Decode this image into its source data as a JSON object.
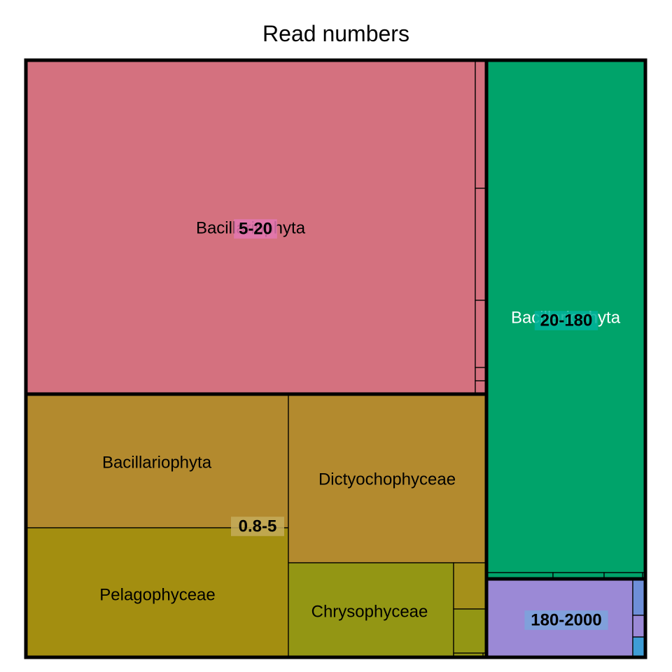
{
  "chart_data": {
    "type": "treemap",
    "title": "Read numbers",
    "groups": [
      {
        "label": "5-20",
        "color": "#D4717F",
        "label_bg": "#E377B2",
        "subgroups": [
          {
            "label": "Bacillariophyta",
            "color": "#D4717F",
            "text_color": "#000000"
          },
          {
            "label": "",
            "color": "#D4717F"
          },
          {
            "label": "",
            "color": "#D4717F"
          },
          {
            "label": "",
            "color": "#D4717F"
          },
          {
            "label": "",
            "color": "#D4717F"
          },
          {
            "label": "",
            "color": "#D4717F"
          }
        ]
      },
      {
        "label": "20-180",
        "color": "#00A36A",
        "label_bg": "#00B39A",
        "subgroups": [
          {
            "label": "Bacillariophyta",
            "color": "#00A36A",
            "text_color": "#FFFFFF"
          },
          {
            "label": "",
            "color": "#00A36A"
          },
          {
            "label": "",
            "color": "#00A36A"
          },
          {
            "label": "",
            "color": "#00A36A"
          },
          {
            "label": "",
            "color": "#00A36A"
          }
        ]
      },
      {
        "label": "0.8-5",
        "color": "#B38A2E",
        "label_bg": "#C4AC5A",
        "subgroups": [
          {
            "label": "Bacillariophyta",
            "color": "#B38A2E",
            "text_color": "#000000"
          },
          {
            "label": "Pelagophyceae",
            "color": "#A38E10",
            "text_color": "#000000"
          },
          {
            "label": "Dictyochophyceae",
            "color": "#B38A2E",
            "text_color": "#000000"
          },
          {
            "label": "Chrysophyceae",
            "color": "#939614",
            "text_color": "#000000"
          },
          {
            "label": "",
            "color": "#A5901A"
          },
          {
            "label": "",
            "color": "#939614"
          },
          {
            "label": "",
            "color": "#939614"
          },
          {
            "label": "",
            "color": "#939614"
          }
        ]
      },
      {
        "label": "180-2000",
        "color": "#9B89D6",
        "label_bg": "#7BA4DC",
        "subgroups": [
          {
            "label": "",
            "color": "#9B89D6"
          },
          {
            "label": "",
            "color": "#6E8FD8"
          },
          {
            "label": "",
            "color": "#9B89D6"
          },
          {
            "label": "",
            "color": "#3E9DD6"
          }
        ]
      }
    ]
  }
}
